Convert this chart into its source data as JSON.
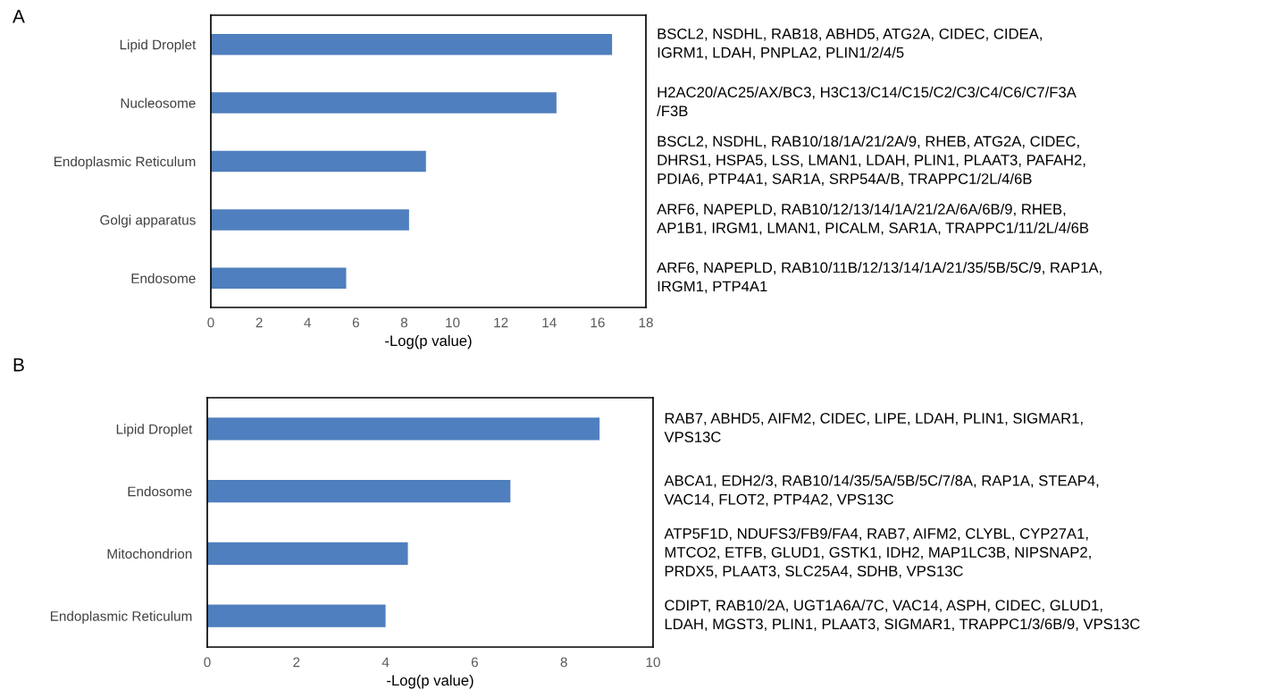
{
  "chart_data": [
    {
      "type": "bar",
      "title": "A",
      "orientation": "horizontal",
      "categories": [
        "Lipid Droplet",
        "Nucleosome",
        "Endoplasmic Reticulum",
        "Golgi apparatus",
        "Endosome"
      ],
      "values": [
        16.6,
        14.3,
        8.9,
        8.2,
        5.6
      ],
      "color": "#4f7fbe",
      "xlabel": "-Log(p value)",
      "xlim": [
        0,
        18
      ],
      "xticks": [
        0,
        2,
        4,
        6,
        8,
        10,
        12,
        14,
        16,
        18
      ],
      "grid": false,
      "legend": false,
      "annotations": [
        "BSCL2, NSDHL, RAB18, ABHD5, ATG2A, CIDEC, CIDEA,\nIGRM1, LDAH, PNPLA2, PLIN1/2/4/5",
        "H2AC20/AC25/AX/BC3, H3C13/C14/C15/C2/C3/C4/C6/C7/F3A\n/F3B",
        "BSCL2, NSDHL, RAB10/18/1A/21/2A/9, RHEB, ATG2A, CIDEC,\nDHRS1, HSPA5, LSS, LMAN1, LDAH, PLIN1, PLAAT3, PAFAH2,\nPDIA6, PTP4A1, SAR1A, SRP54A/B, TRAPPC1/2L/4/6B",
        "ARF6, NAPEPLD, RAB10/12/13/14/1A/21/2A/6A/6B/9, RHEB,\nAP1B1, IRGM1, LMAN1, PICALM, SAR1A, TRAPPC1/11/2L/4/6B",
        "ARF6, NAPEPLD, RAB10/11B/12/13/14/1A/21/35/5B/5C/9, RAP1A,\nIRGM1, PTP4A1"
      ]
    },
    {
      "type": "bar",
      "title": "B",
      "orientation": "horizontal",
      "categories": [
        "Lipid Droplet",
        "Endosome",
        "Mitochondrion",
        "Endoplasmic Reticulum"
      ],
      "values": [
        8.8,
        6.8,
        4.5,
        4.0
      ],
      "color": "#4f7fbe",
      "xlabel": "-Log(p value)",
      "xlim": [
        0,
        10
      ],
      "xticks": [
        0,
        2,
        4,
        6,
        8,
        10
      ],
      "grid": false,
      "legend": false,
      "annotations": [
        "RAB7, ABHD5, AIFM2, CIDEC, LIPE, LDAH, PLIN1, SIGMAR1,\nVPS13C",
        "ABCA1, EDH2/3, RAB10/14/35/5A/5B/5C/7/8A, RAP1A, STEAP4,\nVAC14, FLOT2, PTP4A2, VPS13C",
        "ATP5F1D, NDUFS3/FB9/FA4, RAB7, AIFM2, CLYBL, CYP27A1,\nMTCO2, ETFB, GLUD1, GSTK1, IDH2, MAP1LC3B, NIPSNAP2,\nPRDX5, PLAAT3, SLC25A4, SDHB, VPS13C",
        "CDIPT, RAB10/2A, UGT1A6A/7C, VAC14, ASPH, CIDEC, GLUD1,\nLDAH, MGST3, PLIN1, PLAAT3, SIGMAR1, TRAPPC1/3/6B/9, VPS13C"
      ]
    }
  ]
}
